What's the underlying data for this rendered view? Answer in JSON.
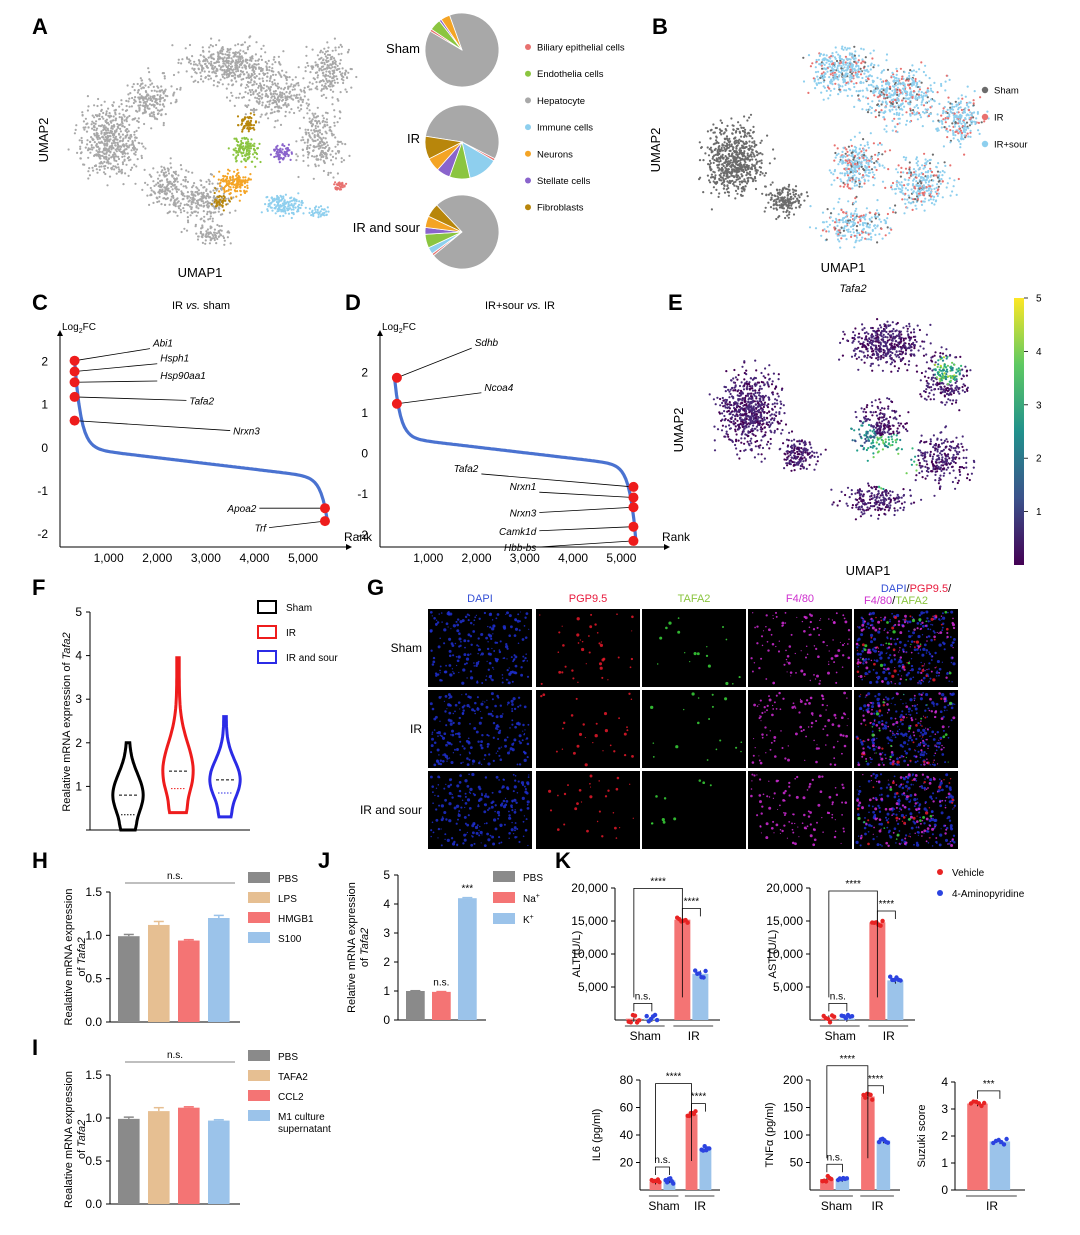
{
  "colors": {
    "biliary": "#e8716f",
    "endothelia": "#8bc540",
    "hepatocyte": "#a8a8a8",
    "immune": "#8ecfee",
    "neurons": "#f4a425",
    "stellate": "#8a64cc",
    "fibroblasts": "#b8860b",
    "sham_cell": "#6b6b6b",
    "ir_cell": "#e8716f",
    "irsour_cell": "#8ecfee",
    "volcano_line": "#4a72d0",
    "highlight": "#ee1c1c",
    "pbs": "#8a8a8a",
    "lps": "#e6bf92",
    "hmgb1": "#f47474",
    "s100": "#9bc3ea",
    "vehicle": "#f47474",
    "aminopyridine": "#9bc3ea",
    "vehicle_dot": "#e82323",
    "amino_dot": "#2b43e0",
    "violin_sham": "#000000",
    "violin_ir": "#ee1c1c",
    "violin_irsour": "#2b2be6"
  },
  "panel_labels": [
    "A",
    "B",
    "C",
    "D",
    "E",
    "F",
    "G",
    "H",
    "I",
    "J",
    "K"
  ],
  "chart_data": [
    {
      "id": "A_umap",
      "type": "scatter",
      "xlabel": "UMAP1",
      "ylabel": "UMAP2",
      "pies": [
        {
          "label": "Sham",
          "values": [
            0.01,
            0.05,
            0.89,
            0.0,
            0.04,
            0.01,
            0.0
          ]
        },
        {
          "label": "IR",
          "values": [
            0.01,
            0.09,
            0.55,
            0.13,
            0.06,
            0.06,
            0.1
          ]
        },
        {
          "label": "IR and sour",
          "values": [
            0.01,
            0.06,
            0.76,
            0.03,
            0.05,
            0.03,
            0.06
          ]
        }
      ],
      "legend": [
        "Biliary epithelial cells",
        "Endothelia cells",
        "Hepatocyte",
        "Immune cells",
        "Neurons",
        "Stellate cells",
        "Fibroblasts"
      ]
    },
    {
      "id": "B_umap",
      "type": "scatter",
      "xlabel": "UMAP1",
      "ylabel": "UMAP2",
      "legend": [
        "Sham",
        "IR",
        "IR+sour"
      ]
    },
    {
      "id": "C_rank",
      "type": "line",
      "title": "IR vs. sham",
      "title_parts": [
        "IR ",
        "vs.",
        " sham"
      ],
      "ylabel": "Log2FC",
      "ylabel_base": "Log",
      "ylabel_sub": "2",
      "ylabel_tail": "FC",
      "xlabel": "Rank",
      "xlim": [
        0,
        5800
      ],
      "ylim": [
        -2.3,
        2.5
      ],
      "xticks": [
        1000,
        2000,
        3000,
        4000,
        5000
      ],
      "xtick_labels": [
        "1,000",
        "2,000",
        "3,000",
        "4,000",
        "5,000"
      ],
      "yticks": [
        2,
        1,
        0,
        -1,
        -2
      ],
      "ytick_labels": [
        "2",
        "1",
        "0",
        "-1",
        "-2"
      ],
      "n": 5500,
      "genes": [
        {
          "name": "Abi1",
          "rank": 300,
          "fc": 2.02,
          "lx": 1850,
          "ly": 2.3
        },
        {
          "name": "Hsph1",
          "rank": 300,
          "fc": 1.77,
          "lx": 2000,
          "ly": 1.95
        },
        {
          "name": "Hsp90aa1",
          "rank": 300,
          "fc": 1.52,
          "lx": 2000,
          "ly": 1.55
        },
        {
          "name": "Tafa2",
          "rank": 300,
          "fc": 1.18,
          "lx": 2600,
          "ly": 1.1
        },
        {
          "name": "Nrxn3",
          "rank": 300,
          "fc": 0.63,
          "lx": 3500,
          "ly": 0.4
        },
        {
          "name": "Apoa2",
          "rank": 5450,
          "fc": -1.4,
          "lx": 4100,
          "ly": -1.4
        },
        {
          "name": "Trf",
          "rank": 5450,
          "fc": -1.7,
          "lx": 4300,
          "ly": -1.85
        }
      ]
    },
    {
      "id": "D_rank",
      "type": "line",
      "title": "IR+sour vs. IR",
      "title_parts": [
        "IR+sour ",
        "vs.",
        " IR"
      ],
      "ylabel": "Log2FC",
      "ylabel_base": "Log",
      "ylabel_sub": "2",
      "ylabel_tail": "FC",
      "xlabel": "Rank",
      "xlim": [
        0,
        5800
      ],
      "ylim": [
        -2.3,
        2.8
      ],
      "xticks": [
        1000,
        2000,
        3000,
        4000,
        5000
      ],
      "xtick_labels": [
        "1,000",
        "2,000",
        "3,000",
        "4,000",
        "5,000"
      ],
      "yticks": [
        2,
        1,
        0,
        -1,
        -2
      ],
      "ytick_labels": [
        "2",
        "1",
        "0",
        "-1",
        "-2"
      ],
      "n": 5300,
      "genes": [
        {
          "name": "Sdhb",
          "rank": 350,
          "fc": 1.87,
          "lx": 1900,
          "ly": 2.6
        },
        {
          "name": "Ncoa4",
          "rank": 350,
          "fc": 1.23,
          "lx": 2100,
          "ly": 1.5
        },
        {
          "name": "Tafa2",
          "rank": 5250,
          "fc": -0.82,
          "lx": 2100,
          "ly": -0.5
        },
        {
          "name": "Nrxn1",
          "rank": 5250,
          "fc": -1.08,
          "lx": 3300,
          "ly": -0.95
        },
        {
          "name": "Nrxn3",
          "rank": 5250,
          "fc": -1.32,
          "lx": 3300,
          "ly": -1.45
        },
        {
          "name": "Camk1d",
          "rank": 5250,
          "fc": -1.8,
          "lx": 3300,
          "ly": -1.9
        },
        {
          "name": "Hbb-bs",
          "rank": 5250,
          "fc": -2.15,
          "lx": 3300,
          "ly": -2.3
        }
      ]
    },
    {
      "id": "E_umap",
      "type": "heatmap",
      "title": "Tafa2",
      "xlabel": "UMAP1",
      "ylabel": "UMAP2",
      "colorbar_ticks": [
        5,
        4,
        3,
        2,
        1
      ],
      "colorbar_tick_labels": [
        "5",
        "4",
        "3",
        "2",
        "1"
      ],
      "vmin": 0,
      "vmax": 5
    },
    {
      "id": "F_violin",
      "type": "violin",
      "ylabel": "Realative mRNA expression of Tafa2",
      "ylabel_prefix": "Realative mRNA expression of ",
      "ylabel_gene": "Tafa2",
      "ylim": [
        0,
        5
      ],
      "yticks": [
        0,
        1,
        2,
        3,
        4,
        5
      ],
      "ytick_labels": [
        "",
        "1",
        "2",
        "3",
        "4",
        "5"
      ],
      "series": [
        {
          "name": "Sham",
          "min": 0.0,
          "max": 2.0,
          "median": 0.8,
          "q1": 0.35,
          "q3": 1.05
        },
        {
          "name": "IR",
          "min": 0.4,
          "max": 3.95,
          "median": 1.35,
          "q1": 0.95,
          "q3": 1.9
        },
        {
          "name": "IR and sour",
          "min": 0.3,
          "max": 2.6,
          "median": 1.15,
          "q1": 0.85,
          "q3": 1.5
        }
      ]
    },
    {
      "id": "G_images",
      "type": "table",
      "columns": [
        "DAPI",
        "PGP9.5",
        "TAFA2",
        "F4/80"
      ],
      "merge_parts": [
        "DAPI",
        "/",
        "PGP9.5",
        "/",
        "F4/80",
        "/",
        "TAFA2"
      ],
      "rows": [
        "Sham",
        "IR",
        "IR and sour"
      ]
    },
    {
      "id": "H_bar",
      "type": "bar",
      "ylabel": "Realative mRNA expression of Tafa2",
      "ylabel_line1": "Realative mRNA expression",
      "ylabel_line2_prefix": "of ",
      "ylabel_gene": "Tafa2",
      "ylim": [
        0,
        1.5
      ],
      "yticks": [
        0,
        0.5,
        1.0,
        1.5
      ],
      "ytick_labels": [
        "0.0",
        "0.5",
        "1.0",
        "1.5"
      ],
      "categories": [
        "PBS",
        "LPS",
        "HMGB1",
        "S100"
      ],
      "values": [
        0.99,
        1.12,
        0.94,
        1.2
      ],
      "errors": [
        0.02,
        0.04,
        0.01,
        0.03
      ],
      "annotation": "n.s."
    },
    {
      "id": "I_bar",
      "type": "bar",
      "ylabel": "Realative mRNA expression of Tafa2",
      "ylabel_line1": "Realative mRNA expression",
      "ylabel_line2_prefix": "of ",
      "ylabel_gene": "Tafa2",
      "ylim": [
        0,
        1.5
      ],
      "yticks": [
        0,
        0.5,
        1.0,
        1.5
      ],
      "ytick_labels": [
        "0.0",
        "0.5",
        "1.0",
        "1.5"
      ],
      "categories": [
        "PBS",
        "TAFA2",
        "CCL2",
        "M1 culture supernatant"
      ],
      "legend_lines": [
        [
          "PBS"
        ],
        [
          "TAFA2"
        ],
        [
          "CCL2"
        ],
        [
          "M1 culture",
          "supernatant"
        ]
      ],
      "values": [
        0.99,
        1.08,
        1.12,
        0.97
      ],
      "errors": [
        0.02,
        0.04,
        0.01,
        0.01
      ],
      "annotation": "n.s."
    },
    {
      "id": "J_bar",
      "type": "bar",
      "ylabel": "Relative mRNA expression of Tafa2",
      "ylabel_line1": "Relative mRNA expression",
      "ylabel_line2_prefix": "of ",
      "ylabel_gene": "Tafa2",
      "ylim": [
        0,
        5
      ],
      "yticks": [
        0,
        1,
        2,
        3,
        4,
        5
      ],
      "ytick_labels": [
        "0",
        "1",
        "2",
        "3",
        "4",
        "5"
      ],
      "categories": [
        "PBS",
        "Na+",
        "K+"
      ],
      "legend_base": [
        "PBS",
        "Na",
        "K"
      ],
      "legend_sup": [
        "",
        "+",
        "+"
      ],
      "values": [
        1.0,
        0.97,
        4.2
      ],
      "errors": [
        0.01,
        0.01,
        0.02
      ],
      "annotations": [
        "",
        "n.s.",
        "***"
      ]
    },
    {
      "id": "K_ALT",
      "type": "bar",
      "ylabel": "ALT (U/L)",
      "ylim": [
        0,
        20000
      ],
      "yticks": [
        5000,
        10000,
        15000,
        20000
      ],
      "ytick_labels": [
        "5,000",
        "10,000",
        "15,000",
        "20,000"
      ],
      "groups": [
        "Sham",
        "IR"
      ],
      "series": [
        {
          "name": "Vehicle",
          "values": [
            200,
            15200
          ]
        },
        {
          "name": "4-Aminopyridine",
          "values": [
            200,
            7000
          ]
        }
      ],
      "sig": [
        "n.s.",
        "****",
        "****"
      ],
      "legend": [
        "Vehicle",
        "4-Aminopyridine"
      ]
    },
    {
      "id": "K_AST",
      "type": "bar",
      "ylabel": "AST (U/L)",
      "ylim": [
        0,
        20000
      ],
      "yticks": [
        5000,
        10000,
        15000,
        20000
      ],
      "ytick_labels": [
        "5,000",
        "10,000",
        "15,000",
        "20,000"
      ],
      "groups": [
        "Sham",
        "IR"
      ],
      "series": [
        {
          "name": "Vehicle",
          "values": [
            200,
            14800
          ]
        },
        {
          "name": "4-Aminopyridine",
          "values": [
            200,
            6000
          ]
        }
      ],
      "sig": [
        "n.s.",
        "****",
        "****"
      ]
    },
    {
      "id": "K_IL6",
      "type": "bar",
      "ylabel": "IL6 (pg/ml)",
      "ylim": [
        0,
        80
      ],
      "yticks": [
        20,
        40,
        60,
        80
      ],
      "ytick_labels": [
        "20",
        "40",
        "60",
        "80"
      ],
      "groups": [
        "Sham",
        "IR"
      ],
      "series": [
        {
          "name": "Vehicle",
          "values": [
            6,
            55
          ]
        },
        {
          "name": "4-Aminopyridine",
          "values": [
            7,
            30
          ]
        }
      ],
      "sig": [
        "n.s.",
        "****",
        "****"
      ]
    },
    {
      "id": "K_TNF",
      "type": "bar",
      "ylabel": "TNFα (pg/ml)",
      "ylim": [
        0,
        200
      ],
      "yticks": [
        50,
        100,
        150,
        200
      ],
      "ytick_labels": [
        "50",
        "100",
        "150",
        "200"
      ],
      "groups": [
        "Sham",
        "IR"
      ],
      "series": [
        {
          "name": "Vehicle",
          "values": [
            20,
            170
          ]
        },
        {
          "name": "4-Aminopyridine",
          "values": [
            20,
            90
          ]
        }
      ],
      "sig": [
        "n.s.",
        "****",
        "****"
      ]
    },
    {
      "id": "K_Suzuki",
      "type": "bar",
      "ylabel": "Suzuki score",
      "ylim": [
        0,
        4
      ],
      "yticks": [
        0,
        1,
        2,
        3,
        4
      ],
      "ytick_labels": [
        "0",
        "1",
        "2",
        "3",
        "4"
      ],
      "groups": [
        "IR"
      ],
      "series": [
        {
          "name": "Vehicle",
          "values": [
            3.2
          ]
        },
        {
          "name": "4-Aminopyridine",
          "values": [
            1.8
          ]
        }
      ],
      "sig": [
        "***"
      ]
    }
  ]
}
